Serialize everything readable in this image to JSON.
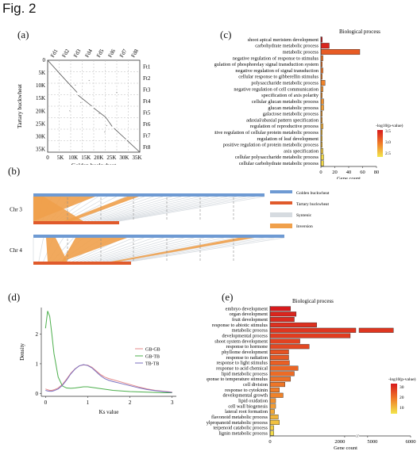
{
  "figure_title": "Fig. 2",
  "panel_labels": {
    "a": "(a)",
    "b": "(b)",
    "c": "(c)",
    "d": "(d)",
    "e": "(e)"
  },
  "colors": {
    "golden": "#6e9ad3",
    "tartary": "#e05a2b",
    "synteny": "#d6dbe0",
    "inversion": "#f0a04b",
    "grad_high": "#d7191c",
    "grad_mid": "#f07c28",
    "grad_low": "#f2e64c"
  },
  "chart_data": [
    {
      "panel": "a",
      "type": "scatter",
      "xlabel": "Golden buckwheat",
      "ylabel": "Tartary buckwheat",
      "x_ticks": [
        "0",
        "5K",
        "10K",
        "15K",
        "20K",
        "25K",
        "30K",
        "35K"
      ],
      "y_ticks": [
        "0",
        "5K",
        "10K",
        "15K",
        "20K",
        "25K",
        "30K",
        "35K"
      ],
      "top_labels": [
        "Fd1",
        "Fd2",
        "Fd3",
        "Fd4",
        "Fd5",
        "Fd6",
        "Fd7",
        "Fd8"
      ],
      "right_labels": [
        "Ft1",
        "Ft2",
        "Ft3",
        "Ft4",
        "Ft5",
        "Ft6",
        "Ft7",
        "Ft8"
      ],
      "grid": true
    },
    {
      "panel": "c",
      "type": "bar",
      "title": "Biological process",
      "xlabel": "Gene count",
      "x_ticks": [
        0,
        20,
        40,
        60,
        80
      ],
      "xlim": [
        0,
        80
      ],
      "legend_title": "-log10(p-value)",
      "legend_ticks": [
        "3.5",
        "3.0",
        "2.5"
      ],
      "legend_range": [
        2.2,
        3.7
      ],
      "categories": [
        "shoot apical meristem development",
        "carbohydrate metabolic process",
        "metabolic process",
        "negative regulation of response to stimulus",
        "regulation of phosphorelay signal transduction system",
        "negative regulation of signal transduction",
        "cellular response to gibberellin stimulus",
        "polysaccharide metabolic process",
        "negative regulation of cell communication",
        "specification of axis polarity",
        "cellular glucan metabolic process",
        "glucan metabolic process",
        "galactose metabolic process",
        "adaxial/abaxial pattern specification",
        "regulation of reproductive process",
        "positive regulation of cellular protein metabolic process",
        "regulation of leaf development",
        "positive regulation of protein metabolic process",
        "axis specification",
        "cellular polysaccharide metabolic process",
        "cellular carbohydrate metabolic process"
      ],
      "values": [
        2,
        12,
        56,
        3,
        2,
        3,
        2,
        6,
        3,
        2,
        4,
        4,
        2,
        2,
        3,
        2,
        2,
        2,
        3,
        4,
        4
      ],
      "pvalues": [
        3.7,
        3.6,
        3.2,
        3.0,
        3.0,
        3.0,
        2.9,
        2.9,
        2.8,
        2.8,
        2.8,
        2.7,
        2.7,
        2.7,
        2.6,
        2.5,
        2.5,
        2.5,
        2.4,
        2.3,
        2.3
      ]
    },
    {
      "panel": "b",
      "type": "other",
      "chromosomes": [
        "Chr 3",
        "Chr 4"
      ],
      "legend": [
        "Golden buckwheat",
        "Tartary buckwheat",
        "Syntenic",
        "Inversion"
      ]
    },
    {
      "panel": "d",
      "type": "line",
      "xlabel": "Ks value",
      "ylabel": "Density",
      "x_ticks": [
        0,
        1,
        2,
        3
      ],
      "y_ticks": [
        0,
        1,
        2
      ],
      "xlim": [
        -0.1,
        3.1
      ],
      "ylim": [
        -0.1,
        2.9
      ],
      "x": [
        0,
        0.05,
        0.1,
        0.15,
        0.2,
        0.3,
        0.4,
        0.5,
        0.6,
        0.7,
        0.8,
        0.9,
        1.0,
        1.1,
        1.2,
        1.3,
        1.4,
        1.5,
        1.6,
        1.8,
        2.0,
        2.2,
        2.4,
        2.6,
        2.8,
        3.0
      ],
      "series": [
        {
          "name": "GB-GB",
          "color": "#e48a8a",
          "values": [
            0.15,
            0.12,
            0.1,
            0.1,
            0.12,
            0.18,
            0.3,
            0.48,
            0.68,
            0.83,
            0.93,
            0.96,
            0.95,
            0.88,
            0.76,
            0.64,
            0.55,
            0.5,
            0.46,
            0.38,
            0.3,
            0.22,
            0.15,
            0.1,
            0.07,
            0.04
          ]
        },
        {
          "name": "GB-TB",
          "color": "#4caf4c",
          "values": [
            2.2,
            2.78,
            2.6,
            2.0,
            1.35,
            0.55,
            0.25,
            0.18,
            0.17,
            0.18,
            0.2,
            0.22,
            0.22,
            0.2,
            0.18,
            0.16,
            0.14,
            0.12,
            0.1,
            0.08,
            0.06,
            0.05,
            0.04,
            0.03,
            0.02,
            0.02
          ]
        },
        {
          "name": "TB-TB",
          "color": "#7a6fbf",
          "values": [
            0.1,
            0.08,
            0.07,
            0.07,
            0.09,
            0.15,
            0.27,
            0.45,
            0.66,
            0.82,
            0.93,
            0.97,
            0.94,
            0.86,
            0.73,
            0.6,
            0.5,
            0.44,
            0.4,
            0.33,
            0.26,
            0.19,
            0.13,
            0.09,
            0.06,
            0.03
          ]
        }
      ]
    },
    {
      "panel": "e",
      "type": "bar",
      "title": "Biological process",
      "xlabel": "Gene count",
      "x_ticks": [
        "0",
        "2000",
        "5000",
        "6000"
      ],
      "axis_break": [
        2300,
        4800
      ],
      "legend_title": "-log10(p-value)",
      "legend_ticks": [
        "30",
        "20",
        "10"
      ],
      "legend_range": [
        2,
        36
      ],
      "categories": [
        "embryo development",
        "organ development",
        "fruit development",
        "response to abiotic stimulus",
        "metabolic process",
        "developmental process",
        "shoot system development",
        "response to hormone",
        "phyllome development",
        "response to radiation",
        "response to light stimulus",
        "response to acid chemical",
        "lipid metabolic process",
        "response to temperature stimulus",
        "cell division",
        "response to cytokinin",
        "developmental growth",
        "lipid oxidation",
        "cell wall biogenesis",
        "lateral root formation",
        "flavonoid metabolic process",
        "phenylpropanoid metabolic process",
        "terpenoid catabolic process",
        "lignin metabolic process"
      ],
      "values": [
        550,
        700,
        650,
        1250,
        5600,
        2150,
        800,
        1050,
        500,
        500,
        520,
        750,
        650,
        550,
        400,
        250,
        350,
        150,
        150,
        120,
        220,
        250,
        100,
        100
      ],
      "pvalues": [
        36,
        34,
        33,
        32,
        31,
        30,
        29,
        28,
        26,
        25,
        24,
        23,
        22,
        21,
        20,
        19,
        18,
        16,
        14,
        12,
        10,
        8,
        6,
        4
      ]
    }
  ]
}
